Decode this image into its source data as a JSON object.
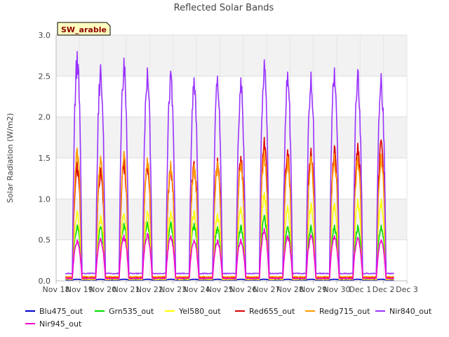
{
  "chart_data": {
    "type": "line",
    "title": "Reflected Solar Bands",
    "xlabel": "",
    "ylabel": "Solar Radiation (W/m2)",
    "badge": "SW_arable",
    "ylim": [
      0,
      3.0
    ],
    "xlim": [
      0,
      15
    ],
    "x_tick_labels": [
      "Nov 18",
      "Nov 19",
      "Nov 20",
      "Nov 21",
      "Nov 22",
      "Nov 23",
      "Nov 24",
      "Nov 25",
      "Nov 26",
      "Nov 27",
      "Nov 28",
      "Nov 29",
      "Nov 30",
      "Dec 1",
      "Dec 2",
      "Dec 3"
    ],
    "y_ticks": [
      0.0,
      0.5,
      1.0,
      1.5,
      2.0,
      2.5,
      3.0
    ],
    "y_tick_labels": [
      "0.0",
      "0.5",
      "1.0",
      "1.5",
      "2.0",
      "2.5",
      "3.0"
    ],
    "grid": true,
    "legend_position": "bottom",
    "days": [
      0.9,
      1.9,
      2.9,
      3.9,
      4.9,
      5.9,
      6.9,
      7.9,
      8.9,
      9.9,
      10.9,
      11.9,
      12.9,
      13.9
    ],
    "series": [
      {
        "name": "Blu475_out",
        "color": "#0000cc",
        "base": 0.01,
        "peaks": [
          0.02,
          0.02,
          0.02,
          0.02,
          0.02,
          0.02,
          0.02,
          0.02,
          0.02,
          0.02,
          0.02,
          0.02,
          0.02,
          0.02
        ]
      },
      {
        "name": "Grn535_out",
        "color": "#00dd00",
        "base": 0.02,
        "peaks": [
          0.68,
          0.66,
          0.7,
          0.72,
          0.72,
          0.7,
          0.66,
          0.68,
          0.8,
          0.66,
          0.68,
          0.68,
          0.68,
          0.68
        ]
      },
      {
        "name": "Yel580_out",
        "color": "#ffff00",
        "base": 0.02,
        "peaks": [
          0.85,
          0.8,
          0.82,
          0.85,
          0.85,
          0.86,
          0.82,
          0.9,
          1.08,
          0.92,
          0.95,
          0.95,
          1.0,
          1.0
        ]
      },
      {
        "name": "Red655_out",
        "color": "#dd0000",
        "base": 0.04,
        "peaks": [
          1.45,
          1.38,
          1.48,
          1.46,
          1.42,
          1.46,
          1.5,
          1.52,
          1.75,
          1.6,
          1.62,
          1.65,
          1.68,
          1.72
        ]
      },
      {
        "name": "Redg715_out",
        "color": "#ff9900",
        "base": 0.05,
        "peaks": [
          1.62,
          1.52,
          1.58,
          1.5,
          1.46,
          1.42,
          1.46,
          1.45,
          1.6,
          1.52,
          1.52,
          1.55,
          1.52,
          1.55
        ]
      },
      {
        "name": "Nir840_out",
        "color": "#9933ff",
        "base": 0.09,
        "peaks": [
          2.8,
          2.64,
          2.72,
          2.6,
          2.56,
          2.48,
          2.5,
          2.48,
          2.7,
          2.55,
          2.55,
          2.6,
          2.58,
          2.53
        ]
      },
      {
        "name": "Nir945_out",
        "color": "#ff00cc",
        "base": 0.03,
        "peaks": [
          0.5,
          0.52,
          0.56,
          0.58,
          0.55,
          0.5,
          0.5,
          0.51,
          0.64,
          0.55,
          0.56,
          0.55,
          0.53,
          0.5
        ]
      }
    ]
  }
}
